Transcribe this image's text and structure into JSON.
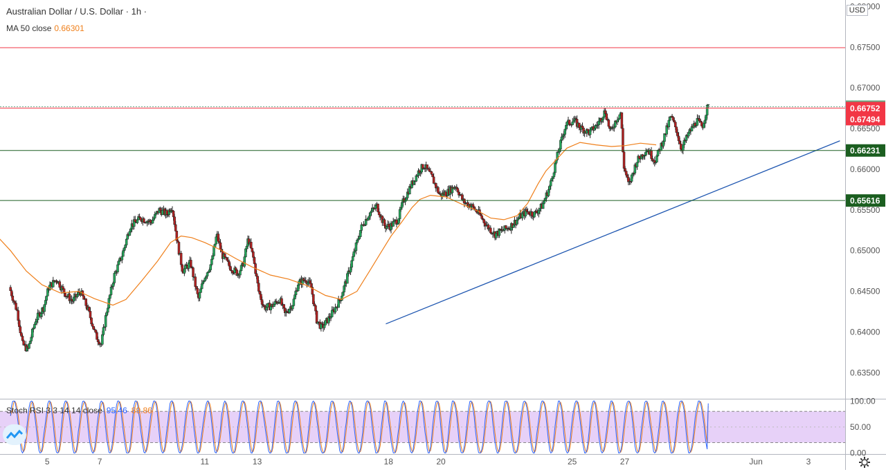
{
  "header": {
    "title": "Australian Dollar / U.S. Dollar · 1h ·",
    "ma_label": "MA 50 close",
    "ma_value": "0.66301",
    "currency": "USD"
  },
  "stoch_legend": {
    "label": "Stoch RSI 3 3 14 14 close",
    "k_value": "95.46",
    "d_value": "89.86"
  },
  "chart_data": [
    {
      "type": "candlestick",
      "title": "Australian Dollar / U.S. Dollar · 1h ·",
      "ylim": [
        0.6318,
        0.6808
      ],
      "y_ticks": [
        0.635,
        0.64,
        0.645,
        0.65,
        0.655,
        0.66,
        0.665,
        0.67,
        0.675,
        0.68
      ],
      "y_tick_labels": [
        "0.63500",
        "0.64000",
        "0.64500",
        "0.65000",
        "0.65500",
        "0.66000",
        "0.66500",
        "0.67000",
        "0.67500",
        "0.68000"
      ],
      "x_ticks": [
        {
          "label": "5",
          "day": 5
        },
        {
          "label": "7",
          "day": 7
        },
        {
          "label": "11",
          "day": 11
        },
        {
          "label": "13",
          "day": 13
        },
        {
          "label": "18",
          "day": 18
        },
        {
          "label": "20",
          "day": 20
        },
        {
          "label": "25",
          "day": 25
        },
        {
          "label": "27",
          "day": 27
        },
        {
          "label": "Jun",
          "day": 32
        },
        {
          "label": "3",
          "day": 34
        }
      ],
      "horizontal_lines": [
        {
          "value": 0.67494,
          "label": "0.67494",
          "color": "#f23645"
        },
        {
          "value": 0.66752,
          "label": "0.66752",
          "color": "#f23645"
        },
        {
          "value": 0.66231,
          "label": "0.66231",
          "color": "#1b5e20"
        },
        {
          "value": 0.65616,
          "label": "0.65616",
          "color": "#1b5e20"
        }
      ],
      "last_price": {
        "value": 0.66769,
        "label": "0.66769",
        "color": "#66a882"
      },
      "trendline": {
        "from": [
          17.9,
          0.641
        ],
        "to": [
          35.2,
          0.6635
        ],
        "color": "#1e56b0"
      },
      "price_path": [
        [
          3.6,
          0.6455
        ],
        [
          3.9,
          0.6425
        ],
        [
          4.1,
          0.6385
        ],
        [
          4.3,
          0.6378
        ],
        [
          4.6,
          0.6415
        ],
        [
          4.9,
          0.643
        ],
        [
          5.1,
          0.6455
        ],
        [
          5.4,
          0.6465
        ],
        [
          5.7,
          0.6448
        ],
        [
          6.0,
          0.6438
        ],
        [
          6.3,
          0.645
        ],
        [
          6.6,
          0.6427
        ],
        [
          6.9,
          0.6395
        ],
        [
          7.1,
          0.6385
        ],
        [
          7.3,
          0.6425
        ],
        [
          7.6,
          0.647
        ],
        [
          7.9,
          0.6495
        ],
        [
          8.2,
          0.653
        ],
        [
          8.6,
          0.654
        ],
        [
          9.0,
          0.6535
        ],
        [
          9.3,
          0.655
        ],
        [
          9.6,
          0.6545
        ],
        [
          9.8,
          0.6555
        ],
        [
          10.0,
          0.651
        ],
        [
          10.2,
          0.6475
        ],
        [
          10.5,
          0.6485
        ],
        [
          10.8,
          0.644
        ],
        [
          11.0,
          0.6465
        ],
        [
          11.3,
          0.6485
        ],
        [
          11.5,
          0.652
        ],
        [
          11.7,
          0.6495
        ],
        [
          12.0,
          0.648
        ],
        [
          12.3,
          0.6472
        ],
        [
          12.5,
          0.6482
        ],
        [
          12.7,
          0.6515
        ],
        [
          12.9,
          0.649
        ],
        [
          13.1,
          0.645
        ],
        [
          13.3,
          0.643
        ],
        [
          13.6,
          0.6432
        ],
        [
          13.9,
          0.644
        ],
        [
          14.1,
          0.6422
        ],
        [
          14.4,
          0.6435
        ],
        [
          14.6,
          0.646
        ],
        [
          14.9,
          0.6465
        ],
        [
          15.1,
          0.6455
        ],
        [
          15.3,
          0.6415
        ],
        [
          15.5,
          0.6405
        ],
        [
          15.8,
          0.6418
        ],
        [
          16.2,
          0.644
        ],
        [
          16.5,
          0.647
        ],
        [
          16.8,
          0.6505
        ],
        [
          17.0,
          0.6528
        ],
        [
          17.3,
          0.6545
        ],
        [
          17.6,
          0.6555
        ],
        [
          17.9,
          0.653
        ],
        [
          18.1,
          0.653
        ],
        [
          18.4,
          0.6538
        ],
        [
          18.6,
          0.656
        ],
        [
          18.9,
          0.658
        ],
        [
          19.2,
          0.6598
        ],
        [
          19.4,
          0.6605
        ],
        [
          19.7,
          0.659
        ],
        [
          20.0,
          0.6568
        ],
        [
          20.3,
          0.6572
        ],
        [
          20.6,
          0.658
        ],
        [
          20.9,
          0.656
        ],
        [
          21.2,
          0.6555
        ],
        [
          21.5,
          0.6545
        ],
        [
          21.8,
          0.653
        ],
        [
          22.1,
          0.652
        ],
        [
          22.4,
          0.6525
        ],
        [
          22.7,
          0.653
        ],
        [
          23.0,
          0.654
        ],
        [
          23.3,
          0.6548
        ],
        [
          23.6,
          0.6545
        ],
        [
          23.9,
          0.6555
        ],
        [
          24.2,
          0.658
        ],
        [
          24.5,
          0.662
        ],
        [
          24.8,
          0.6655
        ],
        [
          25.1,
          0.666
        ],
        [
          25.4,
          0.665
        ],
        [
          25.7,
          0.6645
        ],
        [
          26.0,
          0.6655
        ],
        [
          26.3,
          0.6672
        ],
        [
          26.5,
          0.6645
        ],
        [
          26.7,
          0.666
        ],
        [
          26.9,
          0.667
        ],
        [
          27.0,
          0.6605
        ],
        [
          27.2,
          0.658
        ],
        [
          27.5,
          0.661
        ],
        [
          27.9,
          0.6625
        ],
        [
          28.2,
          0.661
        ],
        [
          28.5,
          0.6635
        ],
        [
          28.8,
          0.6665
        ],
        [
          29.0,
          0.665
        ],
        [
          29.2,
          0.6625
        ],
        [
          29.5,
          0.6645
        ],
        [
          29.8,
          0.666
        ],
        [
          30.0,
          0.6652
        ],
        [
          30.2,
          0.66769
        ]
      ],
      "ma50": {
        "label": "MA 50 close",
        "color": "#ef7f1a",
        "points": [
          [
            3.0,
            0.6521
          ],
          [
            3.6,
            0.65
          ],
          [
            4.2,
            0.6475
          ],
          [
            4.8,
            0.6458
          ],
          [
            5.5,
            0.6448
          ],
          [
            6.2,
            0.645
          ],
          [
            6.8,
            0.6441
          ],
          [
            7.5,
            0.6433
          ],
          [
            8.0,
            0.644
          ],
          [
            8.6,
            0.6463
          ],
          [
            9.2,
            0.6487
          ],
          [
            9.7,
            0.651
          ],
          [
            10.1,
            0.6518
          ],
          [
            10.5,
            0.6516
          ],
          [
            11.0,
            0.651
          ],
          [
            11.6,
            0.6501
          ],
          [
            12.2,
            0.649
          ],
          [
            12.8,
            0.648
          ],
          [
            13.5,
            0.647
          ],
          [
            14.2,
            0.6465
          ],
          [
            14.9,
            0.6457
          ],
          [
            15.6,
            0.6445
          ],
          [
            16.2,
            0.644
          ],
          [
            16.8,
            0.645
          ],
          [
            17.3,
            0.6476
          ],
          [
            17.7,
            0.6497
          ],
          [
            18.1,
            0.6518
          ],
          [
            18.5,
            0.6535
          ],
          [
            18.9,
            0.6553
          ],
          [
            19.2,
            0.6563
          ],
          [
            19.6,
            0.6568
          ],
          [
            20.2,
            0.6566
          ],
          [
            20.8,
            0.6557
          ],
          [
            21.4,
            0.6549
          ],
          [
            21.9,
            0.654
          ],
          [
            22.4,
            0.6538
          ],
          [
            22.9,
            0.6543
          ],
          [
            23.3,
            0.6558
          ],
          [
            23.7,
            0.6582
          ],
          [
            24.0,
            0.6598
          ],
          [
            24.4,
            0.6612
          ],
          [
            24.8,
            0.6626
          ],
          [
            25.3,
            0.6633
          ],
          [
            25.9,
            0.663
          ],
          [
            26.5,
            0.6628
          ],
          [
            27.0,
            0.6629
          ],
          [
            27.6,
            0.6632
          ],
          [
            28.2,
            0.663
          ]
        ]
      }
    },
    {
      "type": "line",
      "title": "Stoch RSI 3 3 14 14 close",
      "ylim": [
        -2,
        103
      ],
      "y_ticks": [
        0,
        50,
        100
      ],
      "y_tick_labels": [
        "0.00",
        "50.00",
        "100.00"
      ],
      "bands": {
        "upper": 80,
        "lower": 20,
        "fill": "#e1c6f6"
      },
      "series": [
        {
          "name": "K",
          "color": "#2962ff",
          "value": 95.46
        },
        {
          "name": "D",
          "color": "#ef7f1a",
          "value": 89.86
        }
      ]
    }
  ]
}
